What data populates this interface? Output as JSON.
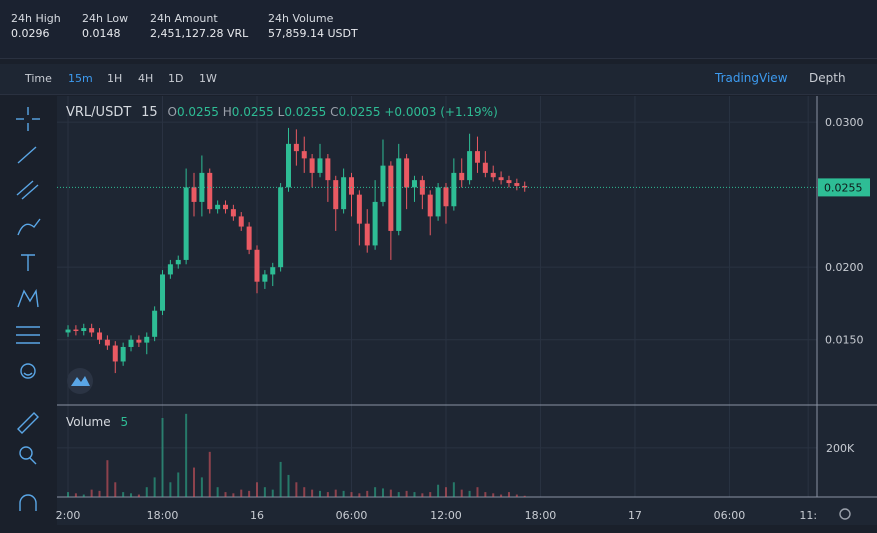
{
  "header": {
    "stats": [
      {
        "label": "24h High",
        "value": "0.0296"
      },
      {
        "label": "24h Low",
        "value": "0.0148"
      },
      {
        "label": "24h Amount",
        "value": "2,451,127.28 VRL"
      },
      {
        "label": "24h Volume",
        "value": "57,859.14 USDT"
      }
    ]
  },
  "toolbar": {
    "intervals": [
      "Time",
      "15m",
      "1H",
      "4H",
      "1D",
      "1W"
    ],
    "active": "15m",
    "views": [
      "TradingView",
      "Depth"
    ]
  },
  "chart_data": {
    "type": "candlestick",
    "symbol": "VRL/USDT",
    "interval": "15",
    "legend": {
      "o_label": "O",
      "o": "0.0255",
      "h_label": "H",
      "h": "0.0255",
      "l_label": "L",
      "l": "0.0255",
      "c_label": "C",
      "c": "0.0255",
      "change": "+0.0003 (+1.19%)"
    },
    "up_color": "#2ebd95",
    "down_color": "#ea5a63",
    "last_price": 0.0255,
    "x": [
      0,
      0.5,
      1,
      1.5,
      2,
      2.5,
      3,
      3.5,
      4,
      4.5,
      5,
      5.5,
      6,
      6.5,
      7,
      7.5,
      8,
      8.5,
      9,
      9.5,
      10,
      10.5,
      11,
      11.5,
      12,
      12.5,
      13,
      13.5,
      14,
      14.5,
      15,
      15.5,
      16,
      16.5,
      17,
      17.5,
      18,
      18.5,
      19,
      19.5,
      20,
      20.5,
      21,
      21.5,
      22,
      22.5,
      23,
      23.5,
      24,
      24.5,
      25,
      25.5,
      26,
      26.5,
      27,
      27.5,
      28,
      28.5,
      29
    ],
    "open": [
      0.0155,
      0.0157,
      0.0156,
      0.0158,
      0.0155,
      0.015,
      0.0146,
      0.0135,
      0.0145,
      0.015,
      0.0148,
      0.0152,
      0.017,
      0.0195,
      0.0202,
      0.0205,
      0.0255,
      0.0245,
      0.0265,
      0.024,
      0.0243,
      0.024,
      0.0235,
      0.0228,
      0.0212,
      0.019,
      0.0195,
      0.02,
      0.0255,
      0.0285,
      0.028,
      0.0275,
      0.0265,
      0.0275,
      0.026,
      0.024,
      0.0262,
      0.025,
      0.023,
      0.0215,
      0.0245,
      0.027,
      0.0225,
      0.0275,
      0.0255,
      0.026,
      0.025,
      0.0235,
      0.0255,
      0.0242,
      0.0265,
      0.026,
      0.028,
      0.0272,
      0.0265,
      0.0262,
      0.026,
      0.0258,
      0.0256
    ],
    "high": [
      0.016,
      0.016,
      0.0161,
      0.0161,
      0.0158,
      0.0153,
      0.0149,
      0.0148,
      0.0153,
      0.0153,
      0.0155,
      0.0173,
      0.0198,
      0.0205,
      0.0208,
      0.0268,
      0.0265,
      0.0277,
      0.0268,
      0.0246,
      0.0246,
      0.0243,
      0.0238,
      0.0231,
      0.0215,
      0.0198,
      0.0203,
      0.0258,
      0.0296,
      0.0295,
      0.029,
      0.0278,
      0.0285,
      0.0278,
      0.0263,
      0.0268,
      0.0265,
      0.0253,
      0.024,
      0.026,
      0.0288,
      0.0273,
      0.0285,
      0.0278,
      0.0263,
      0.0263,
      0.0253,
      0.0258,
      0.0258,
      0.0275,
      0.0275,
      0.0292,
      0.029,
      0.028,
      0.027,
      0.0266,
      0.0263,
      0.0261,
      0.0259
    ],
    "low": [
      0.0152,
      0.0153,
      0.0153,
      0.0152,
      0.0147,
      0.0143,
      0.0127,
      0.0132,
      0.0142,
      0.0145,
      0.014,
      0.0149,
      0.0167,
      0.0192,
      0.0199,
      0.0202,
      0.0235,
      0.0235,
      0.0237,
      0.0237,
      0.0237,
      0.0232,
      0.0225,
      0.0209,
      0.0182,
      0.0185,
      0.0187,
      0.0197,
      0.0252,
      0.027,
      0.0265,
      0.0255,
      0.0262,
      0.0245,
      0.0225,
      0.0237,
      0.0235,
      0.0215,
      0.021,
      0.0212,
      0.0242,
      0.0205,
      0.0222,
      0.024,
      0.0245,
      0.024,
      0.0222,
      0.0232,
      0.023,
      0.0239,
      0.0255,
      0.0257,
      0.0265,
      0.0262,
      0.0259,
      0.0257,
      0.0255,
      0.0253,
      0.0252
    ],
    "close": [
      0.0157,
      0.0156,
      0.0158,
      0.0155,
      0.015,
      0.0146,
      0.0135,
      0.0145,
      0.015,
      0.0148,
      0.0152,
      0.017,
      0.0195,
      0.0202,
      0.0205,
      0.0255,
      0.0245,
      0.0265,
      0.024,
      0.0243,
      0.024,
      0.0235,
      0.0228,
      0.0212,
      0.019,
      0.0195,
      0.02,
      0.0255,
      0.0285,
      0.028,
      0.0275,
      0.0265,
      0.0275,
      0.026,
      0.024,
      0.0262,
      0.025,
      0.023,
      0.0215,
      0.0245,
      0.027,
      0.0225,
      0.0275,
      0.0255,
      0.026,
      0.025,
      0.0235,
      0.0255,
      0.0242,
      0.0265,
      0.026,
      0.028,
      0.0272,
      0.0265,
      0.0262,
      0.026,
      0.0258,
      0.0256,
      0.0255
    ],
    "xlim": [
      -0.7,
      47.56
    ],
    "xticks": [
      {
        "value": 0,
        "label": "2:00"
      },
      {
        "value": 6,
        "label": "18:00"
      },
      {
        "value": 12,
        "label": "16"
      },
      {
        "value": 18,
        "label": "06:00"
      },
      {
        "value": 24,
        "label": "12:00"
      },
      {
        "value": 30,
        "label": "18:00"
      },
      {
        "value": 36,
        "label": "17"
      },
      {
        "value": 42,
        "label": "06:00"
      },
      {
        "value": 47,
        "label": "11:"
      }
    ],
    "ylim": [
      0.0105,
      0.0318
    ],
    "yticks": [
      {
        "value": 0.015,
        "label": "0.0150"
      },
      {
        "value": 0.02,
        "label": "0.0200"
      },
      {
        "value": 0.03,
        "label": "0.0300"
      }
    ],
    "volume": {
      "name": "Volume",
      "interval": "5",
      "ylim": [
        0,
        375000
      ],
      "yticks": [
        {
          "value": 200000,
          "label": "200K"
        }
      ],
      "values": [
        20000,
        15000,
        10000,
        30000,
        25000,
        150000,
        60000,
        20000,
        15000,
        10000,
        40000,
        80000,
        322000,
        60000,
        100000,
        339000,
        120000,
        80000,
        184000,
        40000,
        20000,
        15000,
        30000,
        25000,
        60000,
        40000,
        30000,
        143000,
        90000,
        60000,
        40000,
        30000,
        25000,
        20000,
        30000,
        25000,
        20000,
        15000,
        25000,
        40000,
        35000,
        30000,
        20000,
        25000,
        20000,
        15000,
        20000,
        50000,
        40000,
        60000,
        30000,
        25000,
        40000,
        20000,
        15000,
        10000,
        20000,
        10000,
        5000
      ]
    }
  }
}
